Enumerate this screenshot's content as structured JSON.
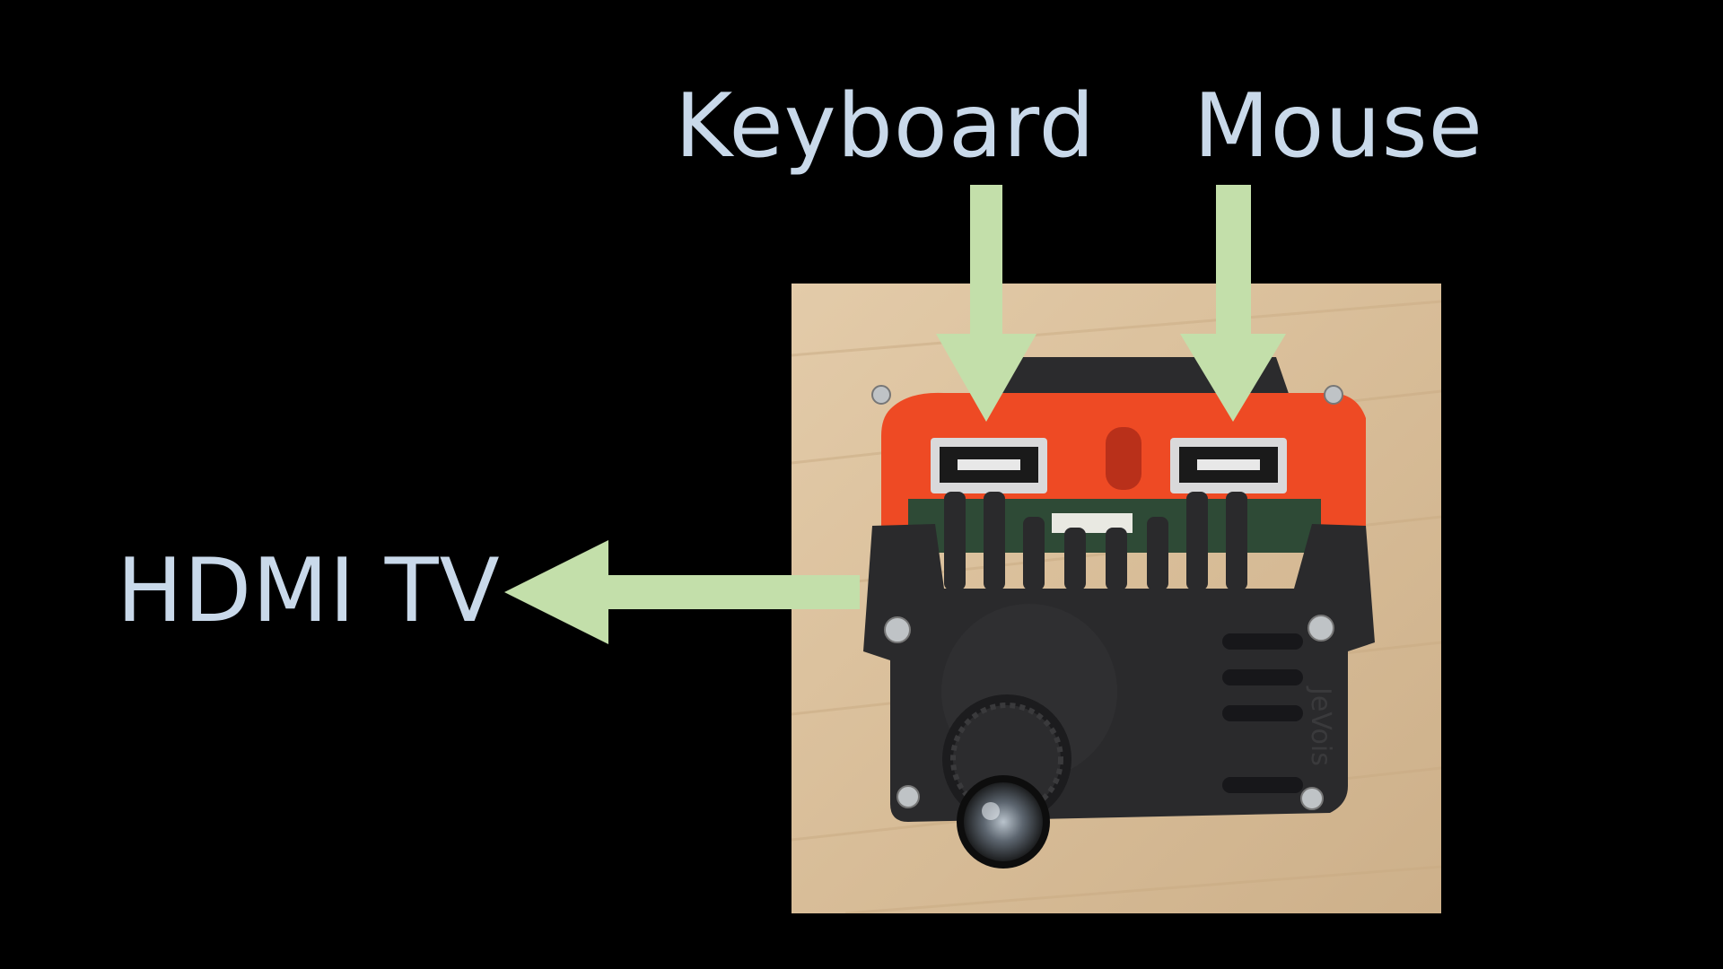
{
  "labels": {
    "keyboard": "Keyboard",
    "mouse": "Mouse",
    "hdmi": "HDMI TV"
  },
  "device_text": "JeVois",
  "colors": {
    "background": "#000000",
    "label": "#c9d9ea",
    "arrow": "#c3dfaa",
    "case_black": "#2a2a2c",
    "case_orange": "#ee4a24",
    "wood": "#dcc3a0"
  },
  "arrows": [
    "keyboard-arrow",
    "mouse-arrow",
    "hdmi-arrow"
  ]
}
